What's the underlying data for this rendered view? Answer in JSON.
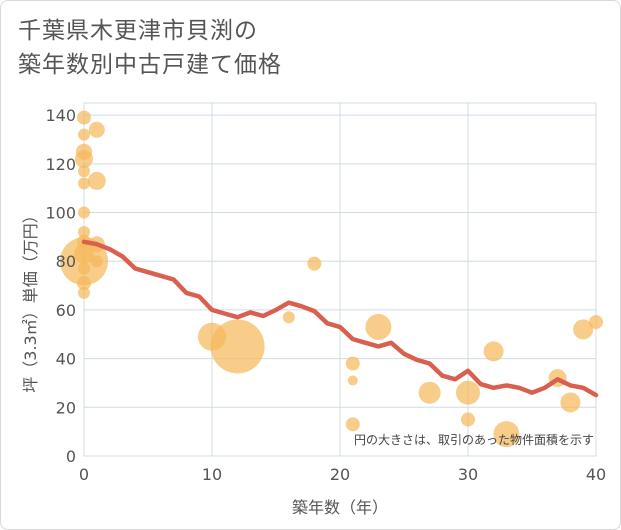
{
  "chart_data": {
    "type": "scatter",
    "title": "千葉県木更津市貝渕の\n築年数別中古戸建て価格",
    "xlabel": "築年数（年）",
    "ylabel": "坪（3.3㎡）単価（万円）",
    "xlim": [
      0,
      40
    ],
    "ylim": [
      0,
      145
    ],
    "xticks": [
      0,
      10,
      20,
      30,
      40
    ],
    "yticks": [
      0,
      20,
      40,
      60,
      80,
      100,
      120,
      140
    ],
    "grid": true,
    "annotation": "円の大きさは、取引のあった物件面積を示す",
    "colors": {
      "bubble": "#f5b95c",
      "line": "#d9604f",
      "grid": "#d0dce6",
      "text": "#555555"
    },
    "points": [
      {
        "x": 0,
        "y": 139,
        "s": 7
      },
      {
        "x": 0,
        "y": 132,
        "s": 6
      },
      {
        "x": 0,
        "y": 125,
        "s": 8
      },
      {
        "x": 0,
        "y": 122,
        "s": 9
      },
      {
        "x": 0,
        "y": 117,
        "s": 6
      },
      {
        "x": 0,
        "y": 112,
        "s": 6
      },
      {
        "x": 0,
        "y": 100,
        "s": 6
      },
      {
        "x": 0,
        "y": 92,
        "s": 6
      },
      {
        "x": 0,
        "y": 88,
        "s": 7
      },
      {
        "x": 0,
        "y": 83,
        "s": 10
      },
      {
        "x": 0,
        "y": 80,
        "s": 24
      },
      {
        "x": 0,
        "y": 77,
        "s": 6
      },
      {
        "x": 0,
        "y": 71,
        "s": 7
      },
      {
        "x": 0,
        "y": 67,
        "s": 6
      },
      {
        "x": 1,
        "y": 134,
        "s": 8
      },
      {
        "x": 1,
        "y": 113,
        "s": 9
      },
      {
        "x": 1,
        "y": 87,
        "s": 8
      },
      {
        "x": 1,
        "y": 80,
        "s": 6
      },
      {
        "x": 10,
        "y": 49,
        "s": 14
      },
      {
        "x": 12,
        "y": 45,
        "s": 27
      },
      {
        "x": 16,
        "y": 57,
        "s": 6
      },
      {
        "x": 18,
        "y": 79,
        "s": 7
      },
      {
        "x": 21,
        "y": 38,
        "s": 7
      },
      {
        "x": 21,
        "y": 31,
        "s": 5
      },
      {
        "x": 21,
        "y": 13,
        "s": 7
      },
      {
        "x": 23,
        "y": 53,
        "s": 13
      },
      {
        "x": 27,
        "y": 26,
        "s": 11
      },
      {
        "x": 30,
        "y": 26,
        "s": 12
      },
      {
        "x": 30,
        "y": 15,
        "s": 7
      },
      {
        "x": 32,
        "y": 43,
        "s": 10
      },
      {
        "x": 33,
        "y": 9,
        "s": 13
      },
      {
        "x": 37,
        "y": 32,
        "s": 9
      },
      {
        "x": 38,
        "y": 22,
        "s": 10
      },
      {
        "x": 39,
        "y": 52,
        "s": 10
      },
      {
        "x": 40,
        "y": 55,
        "s": 7
      }
    ],
    "trend": {
      "x": [
        0,
        1,
        2,
        3,
        4,
        5,
        6,
        7,
        8,
        9,
        10,
        11,
        12,
        13,
        14,
        15,
        16,
        17,
        18,
        19,
        20,
        21,
        22,
        23,
        24,
        25,
        26,
        27,
        28,
        29,
        30,
        31,
        32,
        33,
        34,
        35,
        36,
        37,
        38,
        39,
        40
      ],
      "y": [
        88,
        87,
        85,
        82,
        77,
        75.5,
        74,
        72.5,
        67,
        65.5,
        60,
        58.5,
        57,
        59,
        57.5,
        60,
        63,
        61.5,
        59.5,
        54.5,
        53,
        48,
        46.5,
        45,
        46.5,
        42,
        39.5,
        38,
        33,
        31.5,
        35,
        29.5,
        28,
        29,
        28,
        26,
        28,
        31.5,
        29,
        28,
        25
      ]
    }
  }
}
